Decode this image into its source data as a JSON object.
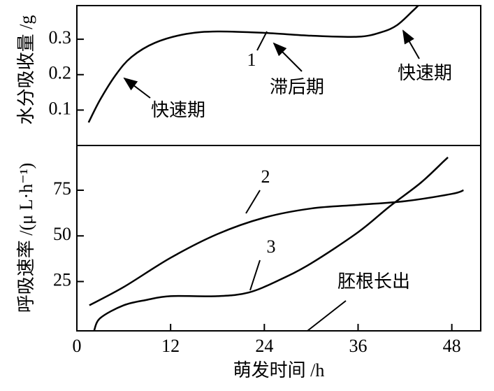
{
  "chart_data": [
    {
      "type": "line",
      "ylabel": "水分吸收量 /g",
      "xlim": [
        0,
        51.7
      ],
      "ylim": [
        0,
        0.395
      ],
      "yticks": [
        0.1,
        0.2,
        0.3
      ],
      "series": [
        {
          "name": "1",
          "color": "#000000",
          "x": [
            1.5,
            3,
            5,
            7,
            10,
            14,
            18,
            24,
            30,
            36,
            39,
            41,
            43,
            43.7
          ],
          "values": [
            0.065,
            0.13,
            0.2,
            0.25,
            0.29,
            0.315,
            0.322,
            0.318,
            0.31,
            0.307,
            0.32,
            0.34,
            0.38,
            0.395
          ]
        }
      ],
      "annotations": [
        "快速期",
        "滞后期",
        "快速期"
      ]
    },
    {
      "type": "line",
      "ylabel": "呼吸速率 /(μ L·h⁻¹)",
      "xlabel": "萌发时间 /h",
      "xlim": [
        0,
        51.7
      ],
      "ylim": [
        -2,
        99.5
      ],
      "xticks": [
        0,
        12,
        24,
        36,
        48
      ],
      "yticks": [
        25,
        50,
        75
      ],
      "series": [
        {
          "name": "2",
          "color": "#000000",
          "x": [
            1.6,
            6,
            12,
            18,
            24,
            30,
            36,
            42,
            48,
            49.5
          ],
          "values": [
            12,
            22,
            38,
            51,
            60,
            65,
            67,
            69,
            73,
            75
          ]
        },
        {
          "name": "3",
          "color": "#000000",
          "x": [
            2.2,
            3,
            6,
            9,
            12,
            18,
            22,
            26,
            30,
            36,
            40,
            44,
            47,
            47.5
          ],
          "values": [
            -2,
            5,
            12,
            15,
            17,
            17,
            19,
            26,
            35,
            52,
            66,
            79,
            91,
            93
          ]
        }
      ],
      "annotations": [
        "胚根长出"
      ]
    }
  ]
}
